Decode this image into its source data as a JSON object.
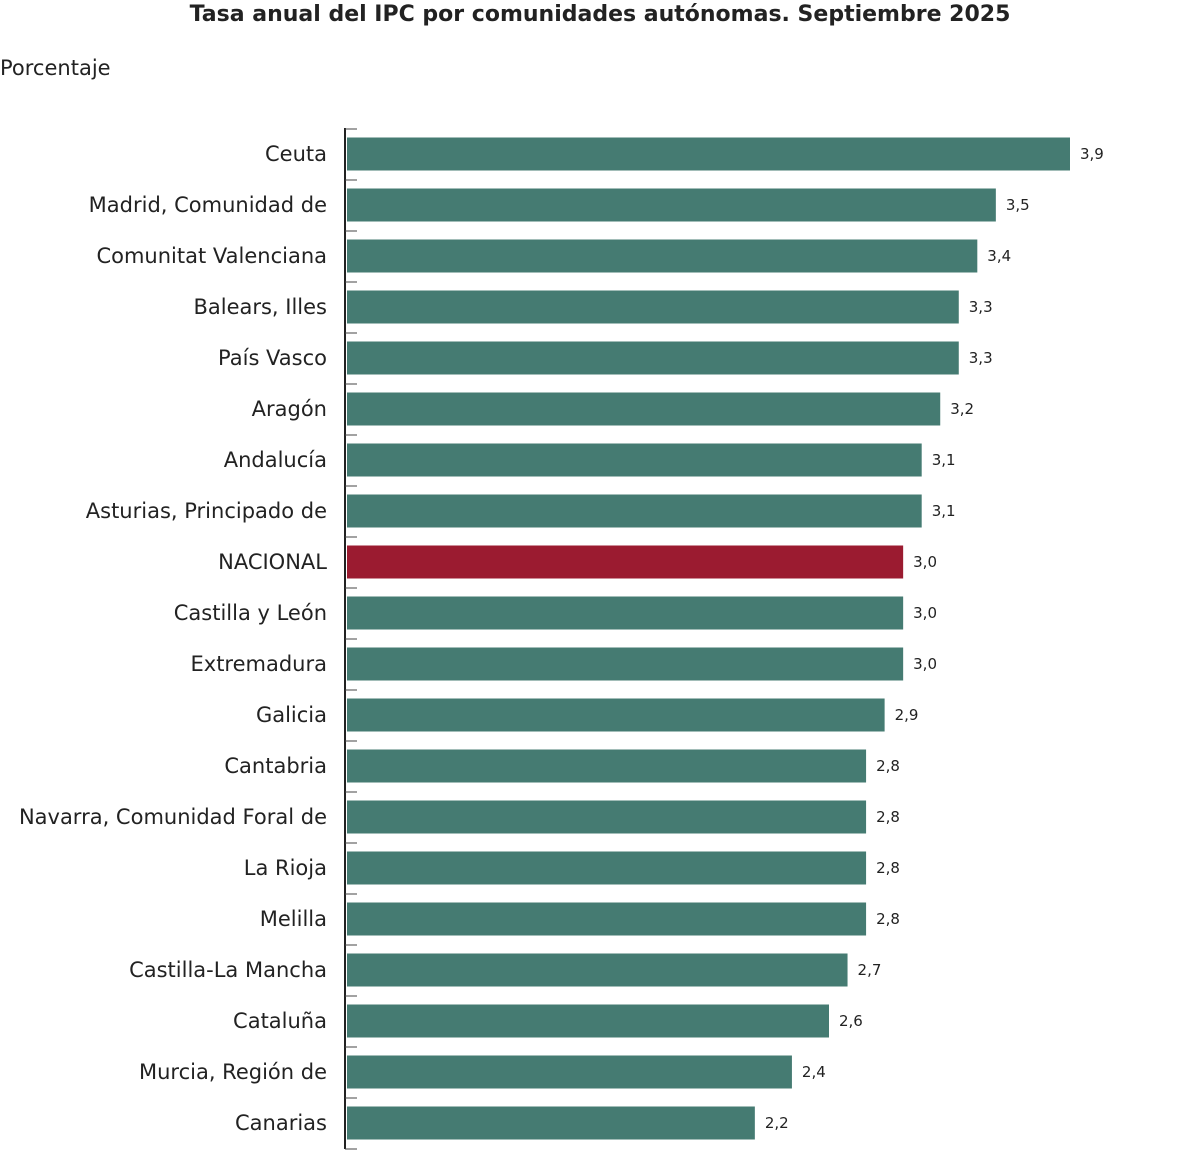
{
  "chart_data": {
    "type": "bar",
    "orientation": "horizontal",
    "title": "Tasa anual del IPC por comunidades autónomas. Septiembre 2025",
    "ylabel": "Porcentaje",
    "xlim": [
      0,
      3.9
    ],
    "grid": false,
    "categories": [
      "Ceuta",
      "Madrid, Comunidad de",
      "Comunitat Valenciana",
      "Balears, Illes",
      "País Vasco",
      "Aragón",
      "Andalucía",
      "Asturias, Principado de",
      "NACIONAL",
      "Castilla y León",
      "Extremadura",
      "Galicia",
      "Cantabria",
      "Navarra, Comunidad Foral de",
      "La Rioja",
      "Melilla",
      "Castilla-La Mancha",
      "Cataluña",
      "Murcia, Región de",
      "Canarias"
    ],
    "values": [
      3.9,
      3.5,
      3.4,
      3.3,
      3.3,
      3.2,
      3.1,
      3.1,
      3.0,
      3.0,
      3.0,
      2.9,
      2.8,
      2.8,
      2.8,
      2.8,
      2.7,
      2.6,
      2.4,
      2.2
    ],
    "data_labels": [
      "3,9",
      "3,5",
      "3,4",
      "3,3",
      "3,3",
      "3,2",
      "3,1",
      "3,1",
      "3,0",
      "3,0",
      "3,0",
      "2,9",
      "2,8",
      "2,8",
      "2,8",
      "2,8",
      "2,7",
      "2,6",
      "2,4",
      "2,2"
    ],
    "highlight": "NACIONAL",
    "colors": {
      "bar": "#457b72",
      "highlight": "#9b1b30"
    }
  }
}
